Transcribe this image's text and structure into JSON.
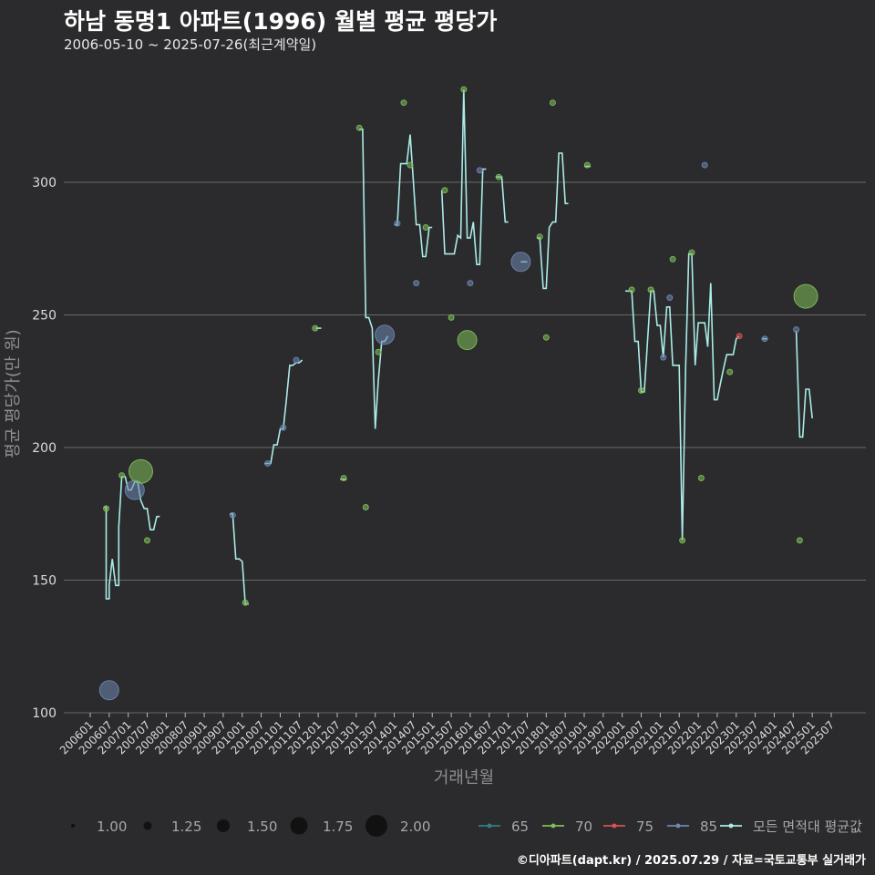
{
  "chart_data": {
    "type": "line",
    "title": "하남 동명1 아파트(1996) 월별 평균 평당가",
    "subtitle": "2006-05-10 ~ 2025-07-26(최근계약일)",
    "xlabel": "거래년월",
    "ylabel": "평균 평당가(만 원)",
    "ylim": [
      100,
      335
    ],
    "yticks": [
      100,
      150,
      200,
      250,
      300
    ],
    "xlim": [
      2006.0,
      2026.0
    ],
    "xticks": [
      "200601",
      "200607",
      "200701",
      "200707",
      "200801",
      "200807",
      "200901",
      "200907",
      "201001",
      "201007",
      "201101",
      "201107",
      "201201",
      "201207",
      "201301",
      "201307",
      "201401",
      "201407",
      "201501",
      "201507",
      "201601",
      "201607",
      "201701",
      "201707",
      "201801",
      "201807",
      "201901",
      "201907",
      "202001",
      "202007",
      "202101",
      "202107",
      "202201",
      "202207",
      "202301",
      "202307",
      "202401",
      "202407",
      "202501",
      "202507"
    ],
    "size_legend": {
      "labels": [
        "1.00",
        "1.25",
        "1.50",
        "1.75",
        "2.00"
      ],
      "values": [
        1.0,
        1.25,
        1.5,
        1.75,
        2.0
      ]
    },
    "color_legend": [
      {
        "name": "65",
        "color": "#2f7f83"
      },
      {
        "name": "70",
        "color": "#7fbf5a"
      },
      {
        "name": "75",
        "color": "#d9534f"
      },
      {
        "name": "85",
        "color": "#6d87b3"
      },
      {
        "name": "모든 면적대 평균값",
        "color": "#a8ece6"
      }
    ],
    "average_line": [
      [
        [
          2006.35,
          177.5
        ],
        [
          2006.42,
          177.5
        ],
        [
          2006.42,
          143
        ],
        [
          2006.5,
          143
        ],
        [
          2006.5,
          148
        ],
        [
          2006.58,
          158
        ],
        [
          2006.67,
          148
        ],
        [
          2006.75,
          148
        ],
        [
          2006.75,
          170
        ],
        [
          2006.83,
          189
        ],
        [
          2006.92,
          189
        ],
        [
          2007.0,
          184
        ],
        [
          2007.08,
          184
        ],
        [
          2007.17,
          187
        ],
        [
          2007.25,
          187
        ],
        [
          2007.33,
          180
        ],
        [
          2007.42,
          177
        ],
        [
          2007.5,
          177
        ],
        [
          2007.58,
          169
        ],
        [
          2007.67,
          169
        ],
        [
          2007.75,
          174
        ],
        [
          2007.83,
          174
        ]
      ],
      [
        [
          2009.67,
          175
        ],
        [
          2009.75,
          175
        ],
        [
          2009.83,
          158
        ],
        [
          2009.92,
          158
        ],
        [
          2010.0,
          157
        ],
        [
          2010.08,
          141
        ],
        [
          2010.17,
          141
        ]
      ],
      [
        [
          2010.58,
          194
        ],
        [
          2010.75,
          194
        ],
        [
          2010.83,
          201
        ],
        [
          2010.92,
          201
        ],
        [
          2011.0,
          207
        ],
        [
          2011.08,
          207
        ],
        [
          2011.17,
          219
        ],
        [
          2011.25,
          231
        ],
        [
          2011.33,
          231
        ],
        [
          2011.42,
          232
        ],
        [
          2011.5,
          232
        ],
        [
          2011.58,
          233
        ]
      ],
      [
        [
          2011.92,
          245
        ],
        [
          2012.08,
          245
        ]
      ],
      [
        [
          2012.58,
          188
        ],
        [
          2012.75,
          188
        ]
      ],
      [
        [
          2013.08,
          320
        ],
        [
          2013.17,
          320
        ],
        [
          2013.25,
          249
        ],
        [
          2013.33,
          249
        ],
        [
          2013.42,
          245
        ],
        [
          2013.5,
          207
        ],
        [
          2013.58,
          225
        ],
        [
          2013.67,
          240
        ],
        [
          2013.75,
          240
        ],
        [
          2013.83,
          242
        ]
      ],
      [
        [
          2014.0,
          284
        ],
        [
          2014.08,
          284
        ],
        [
          2014.17,
          307
        ],
        [
          2014.33,
          307
        ],
        [
          2014.42,
          318
        ],
        [
          2014.5,
          301
        ],
        [
          2014.58,
          284
        ],
        [
          2014.67,
          284
        ],
        [
          2014.75,
          272
        ],
        [
          2014.83,
          272
        ],
        [
          2014.92,
          283
        ],
        [
          2015.0,
          283
        ]
      ],
      [
        [
          2015.25,
          297
        ],
        [
          2015.33,
          273
        ],
        [
          2015.5,
          273
        ],
        [
          2015.58,
          273
        ],
        [
          2015.67,
          280
        ],
        [
          2015.75,
          279
        ],
        [
          2015.83,
          335
        ],
        [
          2015.92,
          279
        ],
        [
          2016.0,
          279
        ],
        [
          2016.08,
          285
        ],
        [
          2016.17,
          269
        ],
        [
          2016.25,
          269
        ],
        [
          2016.33,
          305
        ],
        [
          2016.42,
          305
        ]
      ],
      [
        [
          2016.67,
          302
        ],
        [
          2016.83,
          302
        ],
        [
          2016.92,
          285
        ],
        [
          2017.0,
          285
        ]
      ],
      [
        [
          2017.33,
          270
        ],
        [
          2017.5,
          270
        ]
      ],
      [
        [
          2017.75,
          279
        ],
        [
          2017.83,
          279
        ],
        [
          2017.92,
          260
        ],
        [
          2018.0,
          260
        ],
        [
          2018.08,
          283
        ],
        [
          2018.17,
          285
        ],
        [
          2018.25,
          285
        ],
        [
          2018.33,
          311
        ],
        [
          2018.42,
          311
        ],
        [
          2018.5,
          292
        ],
        [
          2018.58,
          292
        ]
      ],
      [
        [
          2019.0,
          306
        ],
        [
          2019.17,
          306
        ]
      ],
      [
        [
          2020.08,
          259
        ],
        [
          2020.25,
          259
        ],
        [
          2020.33,
          240
        ],
        [
          2020.42,
          240
        ],
        [
          2020.5,
          221
        ],
        [
          2020.58,
          221
        ],
        [
          2020.67,
          241
        ],
        [
          2020.75,
          259
        ],
        [
          2020.83,
          259
        ],
        [
          2020.92,
          246
        ],
        [
          2021.0,
          246
        ],
        [
          2021.08,
          234
        ],
        [
          2021.17,
          253
        ],
        [
          2021.25,
          253
        ],
        [
          2021.33,
          231
        ],
        [
          2021.42,
          231
        ],
        [
          2021.5,
          231
        ],
        [
          2021.58,
          165
        ],
        [
          2021.67,
          231
        ],
        [
          2021.75,
          273
        ],
        [
          2021.83,
          273
        ],
        [
          2021.92,
          231
        ],
        [
          2022.0,
          247
        ],
        [
          2022.08,
          247
        ],
        [
          2022.17,
          247
        ],
        [
          2022.25,
          238
        ],
        [
          2022.33,
          262
        ],
        [
          2022.42,
          218
        ],
        [
          2022.5,
          218
        ],
        [
          2022.58,
          224
        ],
        [
          2022.67,
          230
        ],
        [
          2022.75,
          235
        ],
        [
          2022.83,
          235
        ],
        [
          2022.92,
          235
        ],
        [
          2023.0,
          241
        ],
        [
          2023.08,
          242
        ]
      ],
      [
        [
          2023.67,
          241
        ],
        [
          2023.83,
          241
        ]
      ],
      [
        [
          2024.58,
          244
        ],
        [
          2024.67,
          204
        ],
        [
          2024.75,
          204
        ],
        [
          2024.83,
          222
        ],
        [
          2024.92,
          222
        ],
        [
          2025.0,
          211
        ]
      ]
    ],
    "points": [
      {
        "x": 2006.42,
        "y": 177,
        "area": "70",
        "size": 1.0
      },
      {
        "x": 2006.5,
        "y": 108.5,
        "area": "85",
        "size": 1.75
      },
      {
        "x": 2006.83,
        "y": 189.5,
        "area": "70",
        "size": 1.0
      },
      {
        "x": 2007.17,
        "y": 184,
        "area": "85",
        "size": 1.75
      },
      {
        "x": 2007.33,
        "y": 191,
        "area": "70",
        "size": 2.0
      },
      {
        "x": 2007.5,
        "y": 165,
        "area": "70",
        "size": 1.0
      },
      {
        "x": 2009.75,
        "y": 174.5,
        "area": "85",
        "size": 1.0
      },
      {
        "x": 2010.08,
        "y": 141.5,
        "area": "70",
        "size": 1.0
      },
      {
        "x": 2010.67,
        "y": 194,
        "area": "85",
        "size": 1.0
      },
      {
        "x": 2011.08,
        "y": 207.5,
        "area": "85",
        "size": 1.0
      },
      {
        "x": 2011.42,
        "y": 233,
        "area": "85",
        "size": 1.0
      },
      {
        "x": 2011.92,
        "y": 245,
        "area": "70",
        "size": 1.0
      },
      {
        "x": 2012.67,
        "y": 188.5,
        "area": "70",
        "size": 1.0
      },
      {
        "x": 2013.08,
        "y": 320.5,
        "area": "70",
        "size": 1.0
      },
      {
        "x": 2013.25,
        "y": 177.5,
        "area": "70",
        "size": 1.0
      },
      {
        "x": 2013.58,
        "y": 236,
        "area": "70",
        "size": 1.0
      },
      {
        "x": 2013.75,
        "y": 242.5,
        "area": "85",
        "size": 1.75
      },
      {
        "x": 2014.08,
        "y": 284.5,
        "area": "85",
        "size": 1.0
      },
      {
        "x": 2014.25,
        "y": 330,
        "area": "70",
        "size": 1.0
      },
      {
        "x": 2014.42,
        "y": 306.5,
        "area": "70",
        "size": 1.0
      },
      {
        "x": 2014.58,
        "y": 262,
        "area": "85",
        "size": 1.0
      },
      {
        "x": 2014.83,
        "y": 283,
        "area": "70",
        "size": 1.0
      },
      {
        "x": 2015.33,
        "y": 297,
        "area": "70",
        "size": 1.0
      },
      {
        "x": 2015.5,
        "y": 249,
        "area": "70",
        "size": 1.0
      },
      {
        "x": 2015.83,
        "y": 335,
        "area": "70",
        "size": 1.0
      },
      {
        "x": 2015.92,
        "y": 240.5,
        "area": "70",
        "size": 1.75
      },
      {
        "x": 2016.0,
        "y": 262,
        "area": "85",
        "size": 1.0
      },
      {
        "x": 2016.25,
        "y": 304.5,
        "area": "85",
        "size": 1.0
      },
      {
        "x": 2016.75,
        "y": 302,
        "area": "70",
        "size": 1.0
      },
      {
        "x": 2017.33,
        "y": 270,
        "area": "85",
        "size": 1.75
      },
      {
        "x": 2017.83,
        "y": 279.5,
        "area": "70",
        "size": 1.0
      },
      {
        "x": 2018.0,
        "y": 241.5,
        "area": "70",
        "size": 1.0
      },
      {
        "x": 2018.17,
        "y": 330,
        "area": "70",
        "size": 1.0
      },
      {
        "x": 2019.08,
        "y": 306.5,
        "area": "70",
        "size": 1.0
      },
      {
        "x": 2020.25,
        "y": 259.5,
        "area": "70",
        "size": 1.0
      },
      {
        "x": 2020.5,
        "y": 221.5,
        "area": "70",
        "size": 1.0
      },
      {
        "x": 2020.75,
        "y": 259.5,
        "area": "70",
        "size": 1.0
      },
      {
        "x": 2021.08,
        "y": 234,
        "area": "85",
        "size": 1.0
      },
      {
        "x": 2021.25,
        "y": 256.5,
        "area": "85",
        "size": 1.0
      },
      {
        "x": 2021.33,
        "y": 271,
        "area": "70",
        "size": 1.0
      },
      {
        "x": 2021.58,
        "y": 165,
        "area": "70",
        "size": 1.0
      },
      {
        "x": 2021.83,
        "y": 273.5,
        "area": "70",
        "size": 1.0
      },
      {
        "x": 2022.08,
        "y": 188.5,
        "area": "70",
        "size": 1.0
      },
      {
        "x": 2022.17,
        "y": 306.5,
        "area": "85",
        "size": 1.0
      },
      {
        "x": 2022.83,
        "y": 228.5,
        "area": "70",
        "size": 1.0
      },
      {
        "x": 2023.08,
        "y": 242,
        "area": "75",
        "size": 1.0
      },
      {
        "x": 2023.75,
        "y": 241,
        "area": "85",
        "size": 1.0
      },
      {
        "x": 2024.58,
        "y": 244.5,
        "area": "85",
        "size": 1.0
      },
      {
        "x": 2024.67,
        "y": 165,
        "area": "70",
        "size": 1.0
      },
      {
        "x": 2024.83,
        "y": 257,
        "area": "70",
        "size": 2.0
      }
    ]
  },
  "footer": "©디아파트(dapt.kr) / 2025.07.29 / 자료=국토교통부 실거래가"
}
